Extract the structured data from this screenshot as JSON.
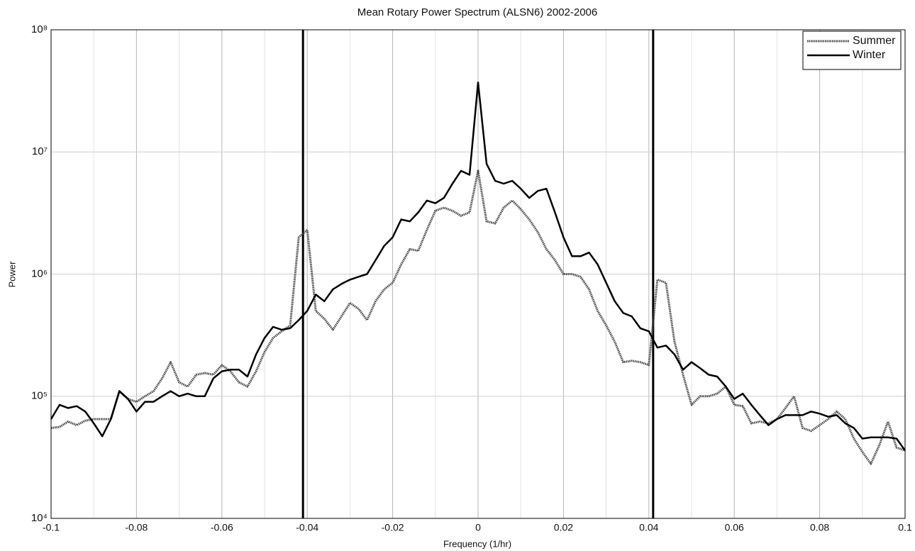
{
  "chart_data": {
    "type": "line",
    "title": "Mean Rotary Power Spectrum (ALSN6) 2002-2006",
    "xlabel": "Frequency (1/hr)",
    "ylabel": "Power",
    "log_y": true,
    "grid": true,
    "legend": "upper right",
    "xlim": [
      -0.1,
      0.1
    ],
    "xticks": [
      -0.1,
      -0.08,
      -0.06,
      -0.04,
      -0.02,
      0,
      0.02,
      0.04,
      0.06,
      0.08,
      0.1
    ],
    "xminorticks": [
      -0.09,
      -0.07,
      -0.05,
      -0.03,
      -0.01,
      0.01,
      0.03,
      0.05,
      0.07,
      0.09
    ],
    "ylim": [
      10000,
      100000000
    ],
    "yticks": [
      {
        "value": 10000,
        "label": "10⁴"
      },
      {
        "value": 100000,
        "label": "10⁵"
      },
      {
        "value": 1000000,
        "label": "10⁶"
      },
      {
        "value": 10000000,
        "label": "10⁷"
      },
      {
        "value": 100000000,
        "label": "10⁸"
      }
    ],
    "vlines": [
      -0.041,
      0.041
    ],
    "x": [
      -0.1,
      -0.098,
      -0.096,
      -0.094,
      -0.092,
      -0.09,
      -0.088,
      -0.086,
      -0.084,
      -0.082,
      -0.08,
      -0.078,
      -0.076,
      -0.074,
      -0.072,
      -0.07,
      -0.068,
      -0.066,
      -0.064,
      -0.062,
      -0.06,
      -0.058,
      -0.056,
      -0.054,
      -0.052,
      -0.05,
      -0.048,
      -0.046,
      -0.044,
      -0.042,
      -0.04,
      -0.038,
      -0.036,
      -0.034,
      -0.032,
      -0.03,
      -0.028,
      -0.026,
      -0.024,
      -0.022,
      -0.02,
      -0.018,
      -0.016,
      -0.014,
      -0.012,
      -0.01,
      -0.008,
      -0.006,
      -0.004,
      -0.002,
      0,
      0.002,
      0.004,
      0.006,
      0.008,
      0.01,
      0.012,
      0.014,
      0.016,
      0.018,
      0.02,
      0.022,
      0.024,
      0.026,
      0.028,
      0.03,
      0.032,
      0.034,
      0.036,
      0.038,
      0.04,
      0.042,
      0.044,
      0.046,
      0.048,
      0.05,
      0.052,
      0.054,
      0.056,
      0.058,
      0.06,
      0.062,
      0.064,
      0.066,
      0.068,
      0.07,
      0.072,
      0.074,
      0.076,
      0.078,
      0.08,
      0.082,
      0.084,
      0.086,
      0.088,
      0.09,
      0.092,
      0.094,
      0.096,
      0.098,
      0.1
    ],
    "series": [
      {
        "name": "Summer",
        "color": "#444444",
        "style": "dotted",
        "values": [
          55000,
          56000,
          62000,
          58000,
          63000,
          65000,
          65000,
          65000,
          110000,
          95000,
          90000,
          100000,
          110000,
          140000,
          190000,
          130000,
          120000,
          150000,
          155000,
          150000,
          180000,
          160000,
          130000,
          120000,
          160000,
          230000,
          300000,
          340000,
          380000,
          2000000,
          2300000,
          500000,
          430000,
          350000,
          450000,
          580000,
          520000,
          420000,
          600000,
          750000,
          850000,
          1200000,
          1600000,
          1550000,
          2300000,
          3300000,
          3500000,
          3300000,
          3000000,
          3200000,
          7000000,
          2700000,
          2600000,
          3500000,
          4000000,
          3400000,
          2800000,
          2200000,
          1600000,
          1300000,
          1000000,
          1000000,
          950000,
          750000,
          500000,
          380000,
          280000,
          190000,
          195000,
          190000,
          180000,
          900000,
          850000,
          280000,
          150000,
          85000,
          100000,
          100000,
          105000,
          120000,
          85000,
          83000,
          60000,
          62000,
          60000,
          65000,
          80000,
          100000,
          55000,
          52000,
          58000,
          65000,
          75000,
          65000,
          45000,
          35000,
          28000,
          40000,
          62000,
          38000,
          36000
        ]
      },
      {
        "name": "Winter",
        "color": "#000000",
        "style": "solid",
        "values": [
          65000,
          85000,
          80000,
          83000,
          75000,
          60000,
          47000,
          65000,
          110000,
          95000,
          75000,
          90000,
          90000,
          100000,
          110000,
          100000,
          105000,
          100000,
          100000,
          140000,
          160000,
          165000,
          165000,
          145000,
          220000,
          300000,
          370000,
          350000,
          360000,
          420000,
          500000,
          680000,
          600000,
          750000,
          830000,
          900000,
          950000,
          1000000,
          1300000,
          1700000,
          2000000,
          2800000,
          2700000,
          3200000,
          4000000,
          3800000,
          4200000,
          5500000,
          7000000,
          6500000,
          37000000,
          8000000,
          5800000,
          5500000,
          5800000,
          5000000,
          4200000,
          4800000,
          5000000,
          3200000,
          2000000,
          1400000,
          1400000,
          1500000,
          1200000,
          850000,
          600000,
          480000,
          450000,
          360000,
          340000,
          250000,
          260000,
          220000,
          165000,
          190000,
          170000,
          150000,
          145000,
          120000,
          95000,
          105000,
          85000,
          70000,
          58000,
          65000,
          70000,
          70000,
          70000,
          75000,
          72000,
          68000,
          70000,
          60000,
          55000,
          45000,
          46000,
          46000,
          46000,
          45000,
          36000
        ]
      }
    ]
  }
}
